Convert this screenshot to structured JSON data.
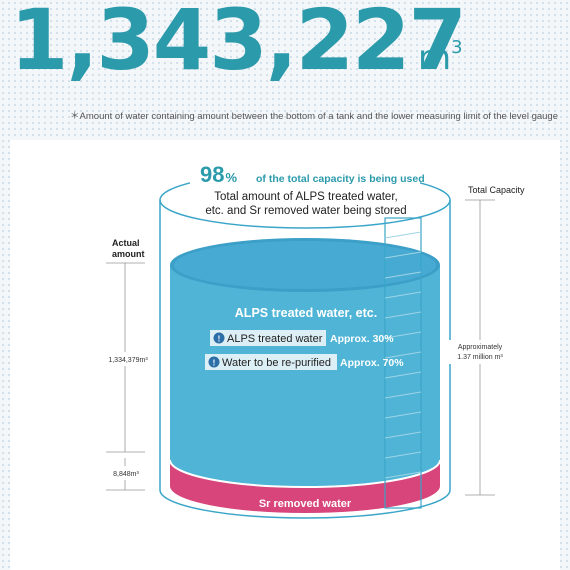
{
  "header": {
    "total_amount": "1,343,227",
    "unit": "m",
    "unit_superscript": "3",
    "footnote": "＊Amount of water containing amount between the bottom of a tank and the lower measuring limit of the level gauge"
  },
  "diagram": {
    "percent": "98",
    "percent_sign": "%",
    "percent_caption": "of the total capacity is being used",
    "stored_title_line1": "Total amount of ALPS treated water,",
    "stored_title_line2": "etc. and Sr removed water being stored",
    "total_capacity_label": "Total Capacity",
    "capacity_value_line1": "Approximately",
    "capacity_value_line2": "1.37 million m³",
    "actual_amount_line1": "Actual",
    "actual_amount_line2": "amount",
    "alps_amount": "1,334,379m³",
    "sr_amount": "8,848m³",
    "alps_title": "ALPS treated water, etc.",
    "alps_treated_label": "ALPS treated water",
    "alps_treated_share": "Approx. 30%",
    "repurify_label": "Water to be re-purified",
    "repurify_share": "Approx. 70%",
    "sr_label": "Sr removed water",
    "info_glyph": "!"
  },
  "colors": {
    "accent": "#2b9aab",
    "water": "#4fb4d6",
    "water_top": "#3c9fc7",
    "sr_water": "#d8457a"
  }
}
